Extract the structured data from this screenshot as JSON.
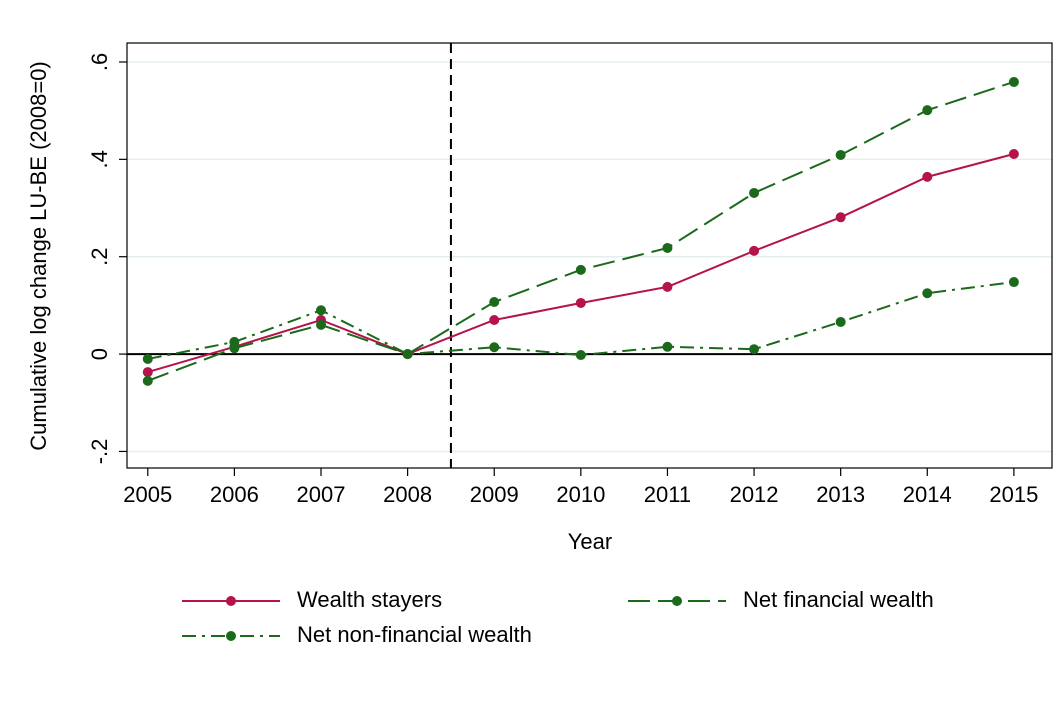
{
  "chart_data": {
    "type": "line",
    "xlabel": "Year",
    "ylabel": "Cumulative log change LU-BE (2008=0)",
    "x": [
      2005,
      2006,
      2007,
      2008,
      2009,
      2010,
      2011,
      2012,
      2013,
      2014,
      2015
    ],
    "xlim": [
      2004.76,
      2015.44
    ],
    "xticks": [
      2005,
      2006,
      2007,
      2008,
      2009,
      2010,
      2011,
      2012,
      2013,
      2014,
      2015
    ],
    "ylim": [
      -0.234,
      0.639
    ],
    "yticks": [
      {
        "value": -0.2,
        "label": "-.2"
      },
      0,
      {
        "value": 0.2,
        "label": ".2"
      },
      {
        "value": 0.4,
        "label": ".4"
      },
      {
        "value": 0.6,
        "label": ".6"
      }
    ],
    "grid": true,
    "hline": 0,
    "vline": 2008.5,
    "legend": "bottom",
    "series": [
      {
        "name": "Wealth stayers",
        "color": "#b5134b",
        "style": "solid",
        "values": [
          -0.037,
          0.015,
          0.07,
          0,
          0.07,
          0.105,
          0.138,
          0.212,
          0.281,
          0.364,
          0.411
        ]
      },
      {
        "name": "Net financial wealth",
        "color": "#1b6a1b",
        "style": "longdash",
        "values": [
          -0.055,
          0.012,
          0.06,
          0,
          0.107,
          0.173,
          0.218,
          0.331,
          0.409,
          0.501,
          0.559
        ]
      },
      {
        "name": "Net non-financial wealth",
        "color": "#1b6a1b",
        "style": "dashdot",
        "values": [
          -0.01,
          0.025,
          0.09,
          0,
          0.014,
          -0.002,
          0.015,
          0.01,
          0.066,
          0.125,
          0.148
        ]
      }
    ]
  }
}
